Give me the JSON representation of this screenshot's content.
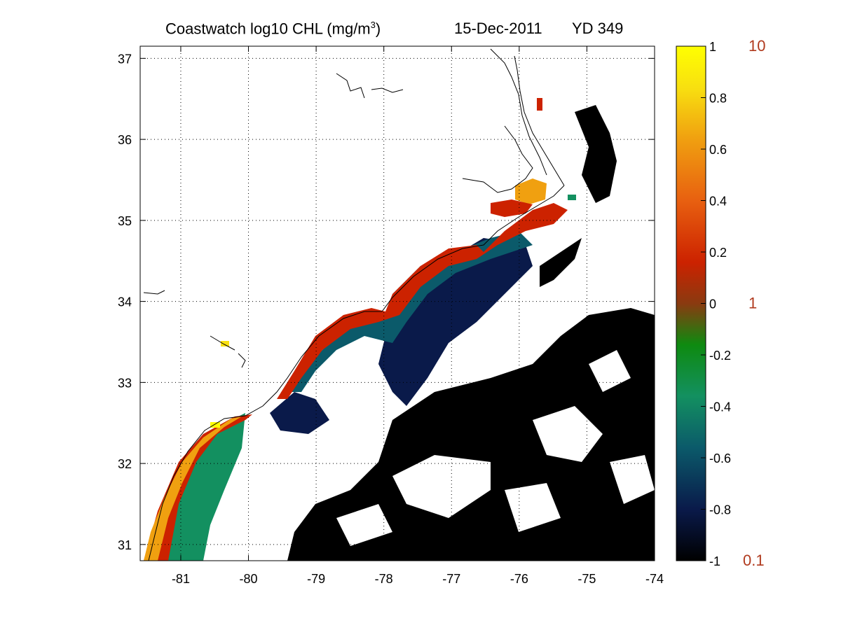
{
  "title": {
    "product": "Coastwatch  log10  CHL (mg/m",
    "superscript": "3",
    "close": ")",
    "date": "15-Dec-2011",
    "yearday": "YD 349"
  },
  "axes": {
    "x_ticks": [
      "-81",
      "-80",
      "-79",
      "-78",
      "-77",
      "-76",
      "-75",
      "-74"
    ],
    "y_ticks": [
      "31",
      "32",
      "33",
      "34",
      "35",
      "36",
      "37"
    ],
    "xlim": [
      -81.6,
      -74
    ],
    "ylim": [
      30.8,
      37.15
    ],
    "grid": "dotted"
  },
  "colorbar": {
    "ticks": [
      "1",
      "0.8",
      "0.6",
      "0.4",
      "0.2",
      "0",
      "-0.2",
      "-0.4",
      "-0.6",
      "-0.8",
      "-1"
    ],
    "linear_labels": [
      "10",
      "1",
      "0.1"
    ],
    "colors": [
      "#000000",
      "#0a1a4a",
      "#0b5a6a",
      "#139060",
      "#0e8a10",
      "#8a3a10",
      "#cc2200",
      "#e86010",
      "#f0a010",
      "#f8e010",
      "#ffff00"
    ],
    "land_color": "#ffffff",
    "coast_color": "#000000"
  }
}
